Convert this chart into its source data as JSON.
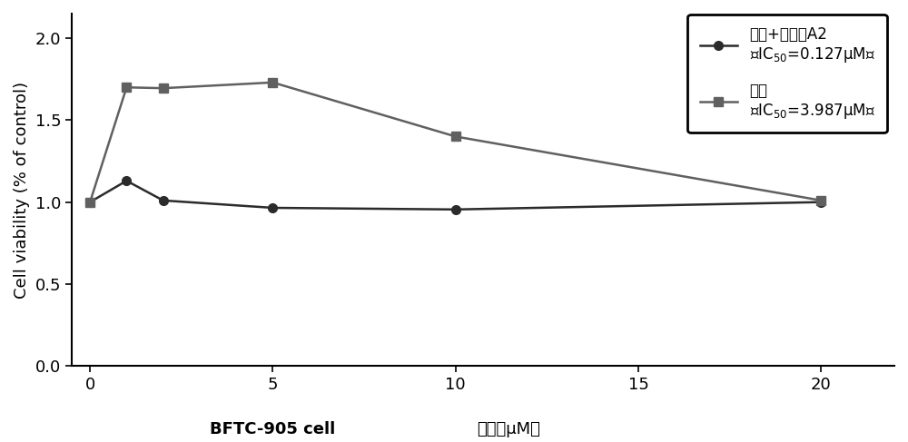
{
  "x_values": [
    0,
    1,
    2,
    5,
    10,
    20
  ],
  "series1_y": [
    1.0,
    1.13,
    1.01,
    0.965,
    0.955,
    1.0
  ],
  "series2_y": [
    1.0,
    1.7,
    1.695,
    1.73,
    1.4,
    1.01
  ],
  "series1_label_line1": "顺铂+合成物A2",
  "series1_label_line2": "（IC$_{50}$=0.127μM）",
  "series2_label_line1": "顺铂",
  "series2_label_line2": "（IC$_{50}$=3.987μM）",
  "xlabel_left": "BFTC-905 cell",
  "xlabel_right": "浓度（μM）",
  "ylabel": "Cell viability (% of control)",
  "xlim": [
    -0.5,
    22
  ],
  "ylim": [
    0.0,
    2.15
  ],
  "yticks": [
    0.0,
    0.5,
    1.0,
    1.5,
    2.0
  ],
  "xticks": [
    0,
    5,
    10,
    15,
    20
  ],
  "color_series1": "#2b2b2b",
  "color_series2": "#606060",
  "background_color": "#ffffff",
  "label_fontsize": 13,
  "tick_fontsize": 13,
  "legend_fontsize": 12
}
